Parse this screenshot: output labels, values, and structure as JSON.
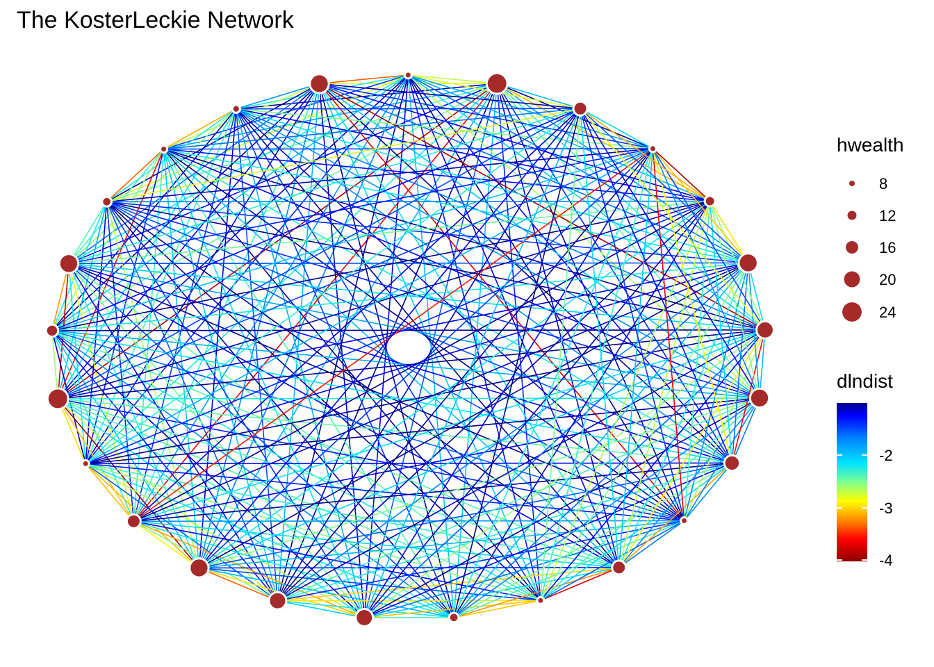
{
  "title": "The KosterLeckie Network",
  "legend_size": {
    "title": "hwealth",
    "entries": [
      {
        "label": "8",
        "value": 8
      },
      {
        "label": "12",
        "value": 12
      },
      {
        "label": "16",
        "value": 16
      },
      {
        "label": "20",
        "value": 20
      },
      {
        "label": "24",
        "value": 24
      }
    ]
  },
  "legend_color": {
    "title": "dlndist",
    "ticks": [
      "-2",
      "-3",
      "-4"
    ],
    "range": [
      -4.0,
      -1.2
    ],
    "palette": [
      "#00008b",
      "#0000ff",
      "#0080ff",
      "#00e5ff",
      "#7fff8f",
      "#ffff00",
      "#ff8000",
      "#ff0000",
      "#8b0000"
    ]
  },
  "colors": {
    "node": "#a52a2a",
    "background": "#ffffff"
  },
  "network": {
    "layout": "circle",
    "node_hwealth": [
      22,
      6,
      20,
      7,
      6,
      9,
      20,
      12,
      22,
      6,
      14,
      20,
      18,
      18,
      9,
      6,
      14,
      6,
      16,
      20,
      18,
      20,
      10,
      6,
      14
    ]
  }
}
